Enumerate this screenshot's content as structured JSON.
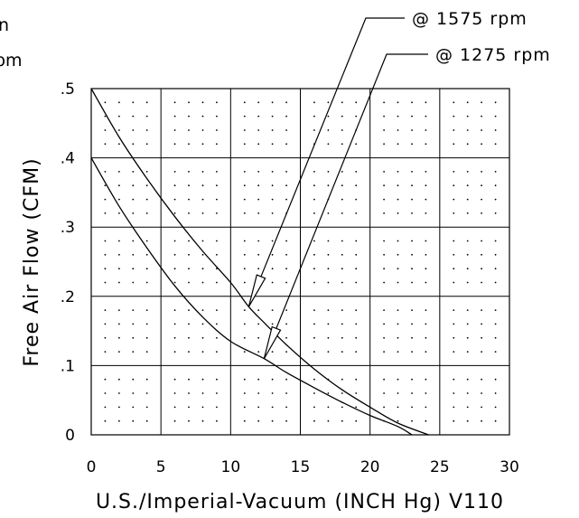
{
  "chart_data": {
    "type": "line",
    "xlabel": "U.S./Imperial-Vacuum (INCH Hg) V110",
    "ylabel": "Free Air Flow (CFM)",
    "x_ticks": [
      "0",
      "5",
      "10",
      "15",
      "20",
      "25",
      "30"
    ],
    "y_ticks": [
      "0",
      ".1",
      ".2",
      ".3",
      ".4",
      ".5"
    ],
    "xlim": [
      0,
      30
    ],
    "ylim": [
      0,
      0.5
    ],
    "grid": true,
    "series": [
      {
        "name": "@ 1575 rpm",
        "x": [
          0,
          2,
          4,
          6,
          8,
          10,
          11.3,
          12.5,
          14,
          16,
          18,
          20,
          22,
          24.2
        ],
        "y": [
          0.5,
          0.43,
          0.37,
          0.315,
          0.265,
          0.22,
          0.185,
          0.16,
          0.13,
          0.095,
          0.065,
          0.04,
          0.017,
          0
        ]
      },
      {
        "name": "@ 1275 rpm",
        "x": [
          0,
          2,
          4,
          6,
          8,
          10,
          12.4,
          14,
          16,
          18,
          20,
          22,
          23
        ],
        "y": [
          0.4,
          0.33,
          0.27,
          0.215,
          0.17,
          0.135,
          0.11,
          0.09,
          0.068,
          0.047,
          0.028,
          0.012,
          0
        ]
      }
    ],
    "annotations": [
      {
        "text": "@ 1575 rpm"
      },
      {
        "text": "@ 1275 rpm"
      }
    ],
    "cropped_left_fragments": [
      "n",
      "pm"
    ]
  }
}
